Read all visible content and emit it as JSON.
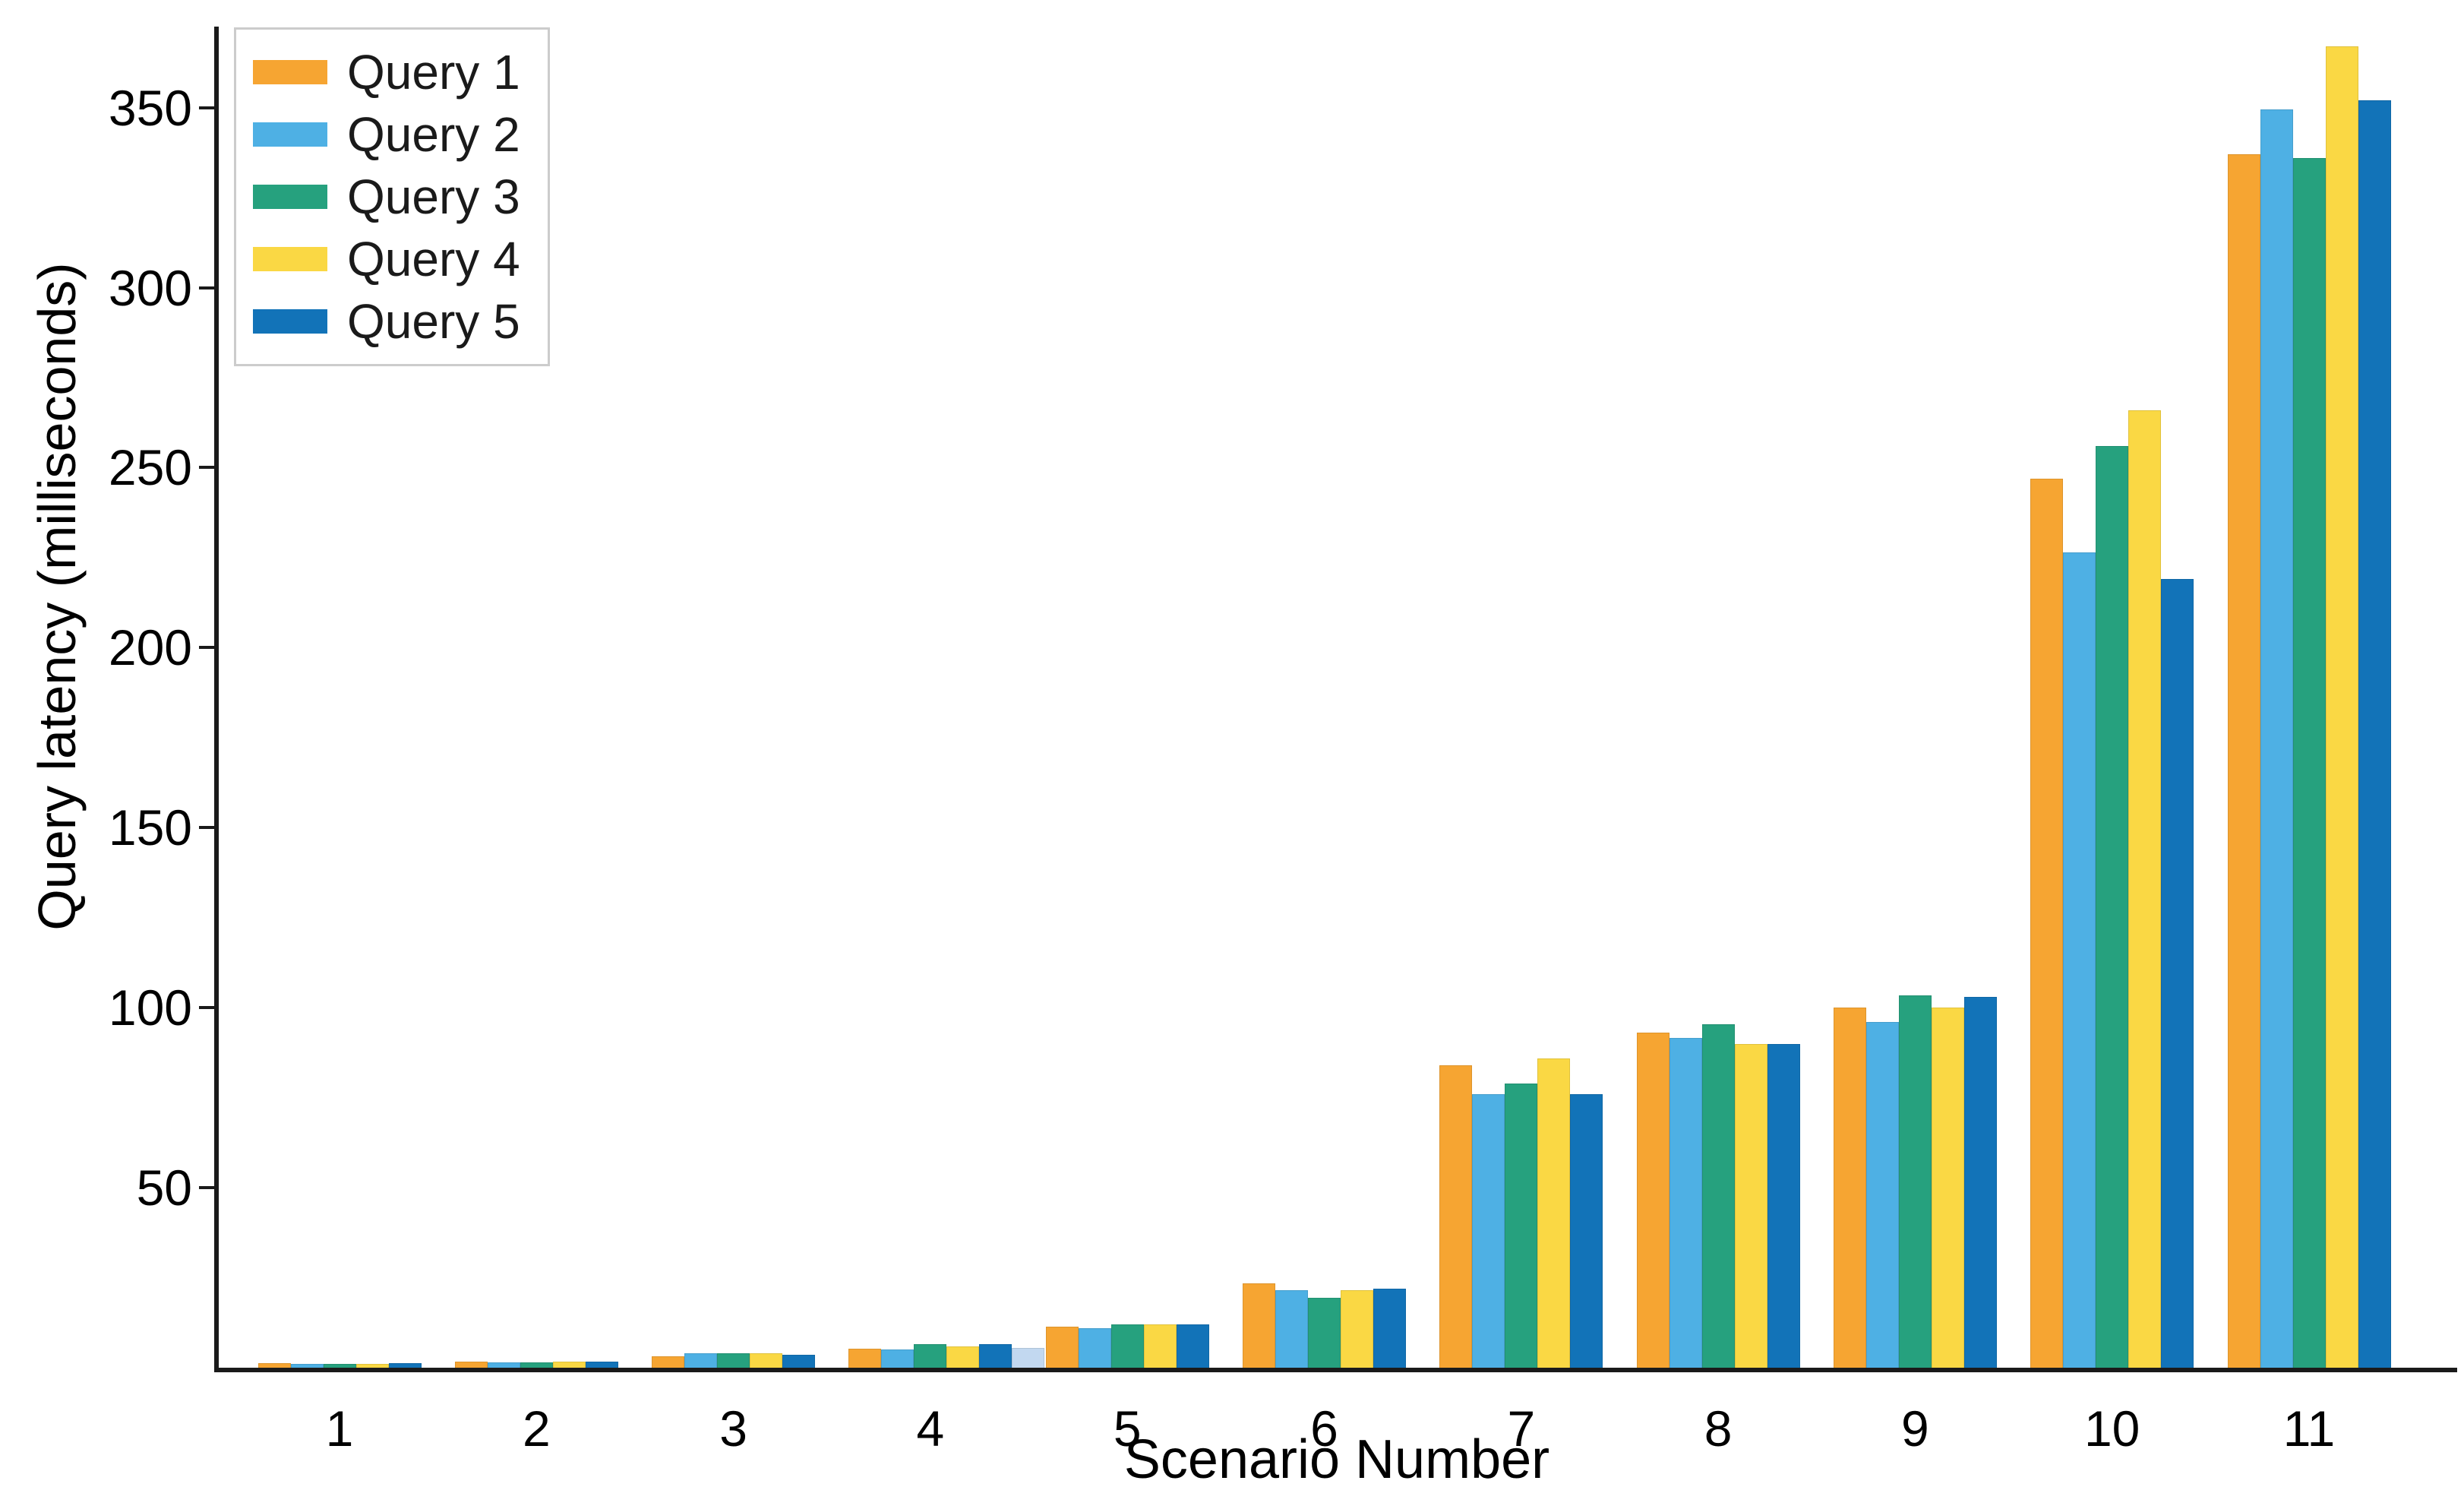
{
  "chart_data": {
    "type": "bar",
    "title": "",
    "xlabel": "Scenario Number",
    "ylabel": "Query latency (milliseconds)",
    "categories": [
      "1",
      "2",
      "3",
      "4",
      "5",
      "6",
      "7",
      "8",
      "9",
      "10",
      "11"
    ],
    "series": [
      {
        "name": "Query 1",
        "color": "#F6A532",
        "values": [
          1.2,
          1.6,
          3.2,
          5.2,
          11.5,
          23.5,
          84,
          93,
          100,
          247,
          337
        ]
      },
      {
        "name": "Query 2",
        "color": "#4EB0E4",
        "values": [
          1.0,
          1.4,
          4.0,
          5.0,
          11.0,
          21.5,
          76,
          91.5,
          96,
          226.5,
          349.5
        ]
      },
      {
        "name": "Query 3",
        "color": "#26A17E",
        "values": [
          1.0,
          1.4,
          4.0,
          6.5,
          12.0,
          19.5,
          79,
          95.5,
          103.5,
          256,
          336
        ]
      },
      {
        "name": "Query 4",
        "color": "#FAD844",
        "values": [
          1.1,
          1.6,
          4.0,
          6.0,
          12.0,
          21.5,
          86,
          90,
          100,
          266,
          367
        ]
      },
      {
        "name": "Query 5",
        "color": "#1273B8",
        "values": [
          1.2,
          1.7,
          3.6,
          6.5,
          12.0,
          22.0,
          76,
          90,
          103,
          219,
          352
        ]
      }
    ],
    "extra_bar": {
      "category": "4",
      "value": 5.5,
      "color": "#C2D8F0"
    },
    "ylim": [
      0,
      372.5
    ],
    "yticks": [
      50,
      100,
      150,
      200,
      250,
      300,
      350
    ],
    "legend_position": "upper left",
    "grid": false,
    "axis_color": "#1a1a1a"
  }
}
